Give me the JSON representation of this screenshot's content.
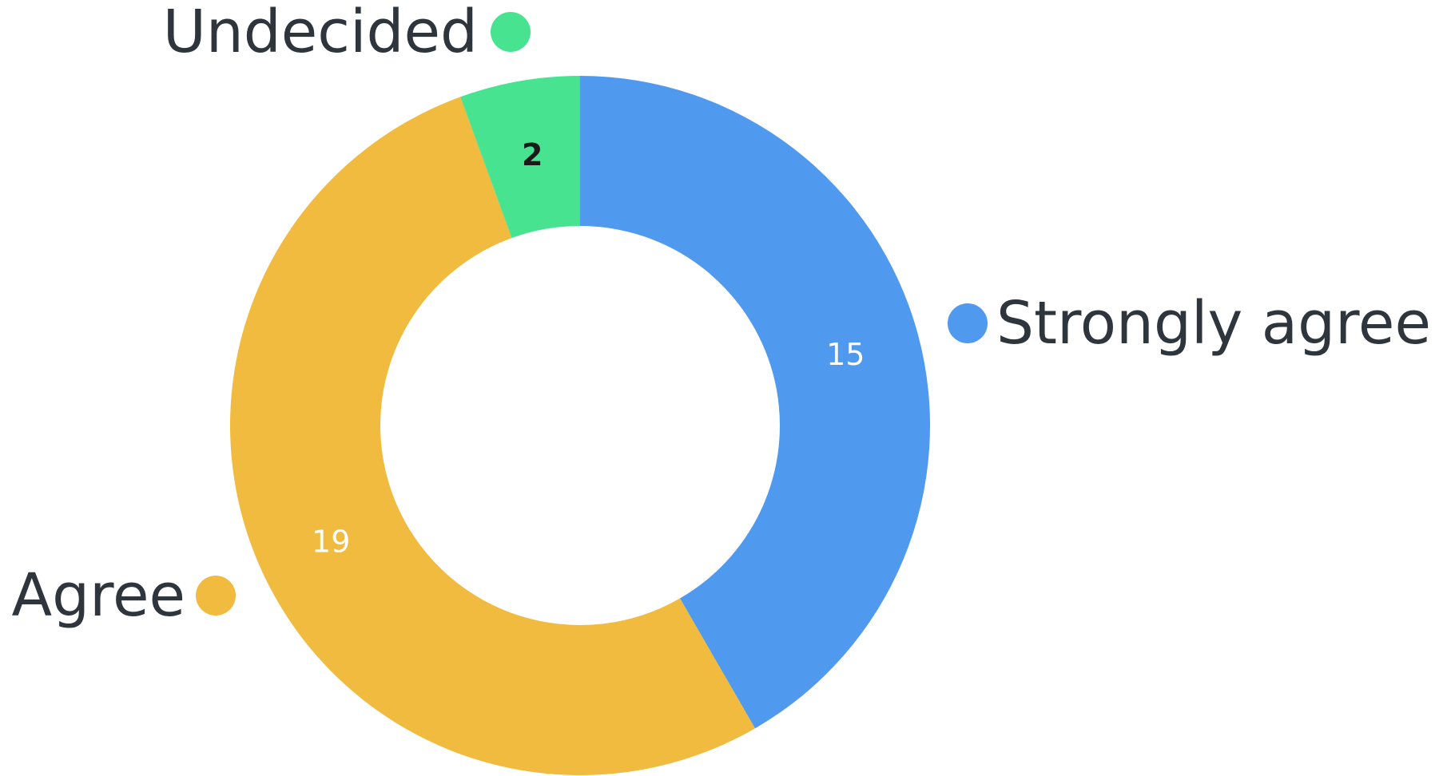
{
  "chart_data": {
    "type": "pie",
    "donut": true,
    "legend_placement": "outside-labels",
    "slices": [
      {
        "label": "Strongly agree",
        "value": 15,
        "color": "#4f99ee",
        "value_label": "15",
        "value_label_color": "#ffffff"
      },
      {
        "label": "Agree",
        "value": 19,
        "color": "#f0bb3e",
        "value_label": "19",
        "value_label_color": "#ffffff"
      },
      {
        "label": "Undecided",
        "value": 2,
        "color": "#47e391",
        "value_label": "2",
        "value_label_color": "#1a1a1a"
      }
    ]
  }
}
